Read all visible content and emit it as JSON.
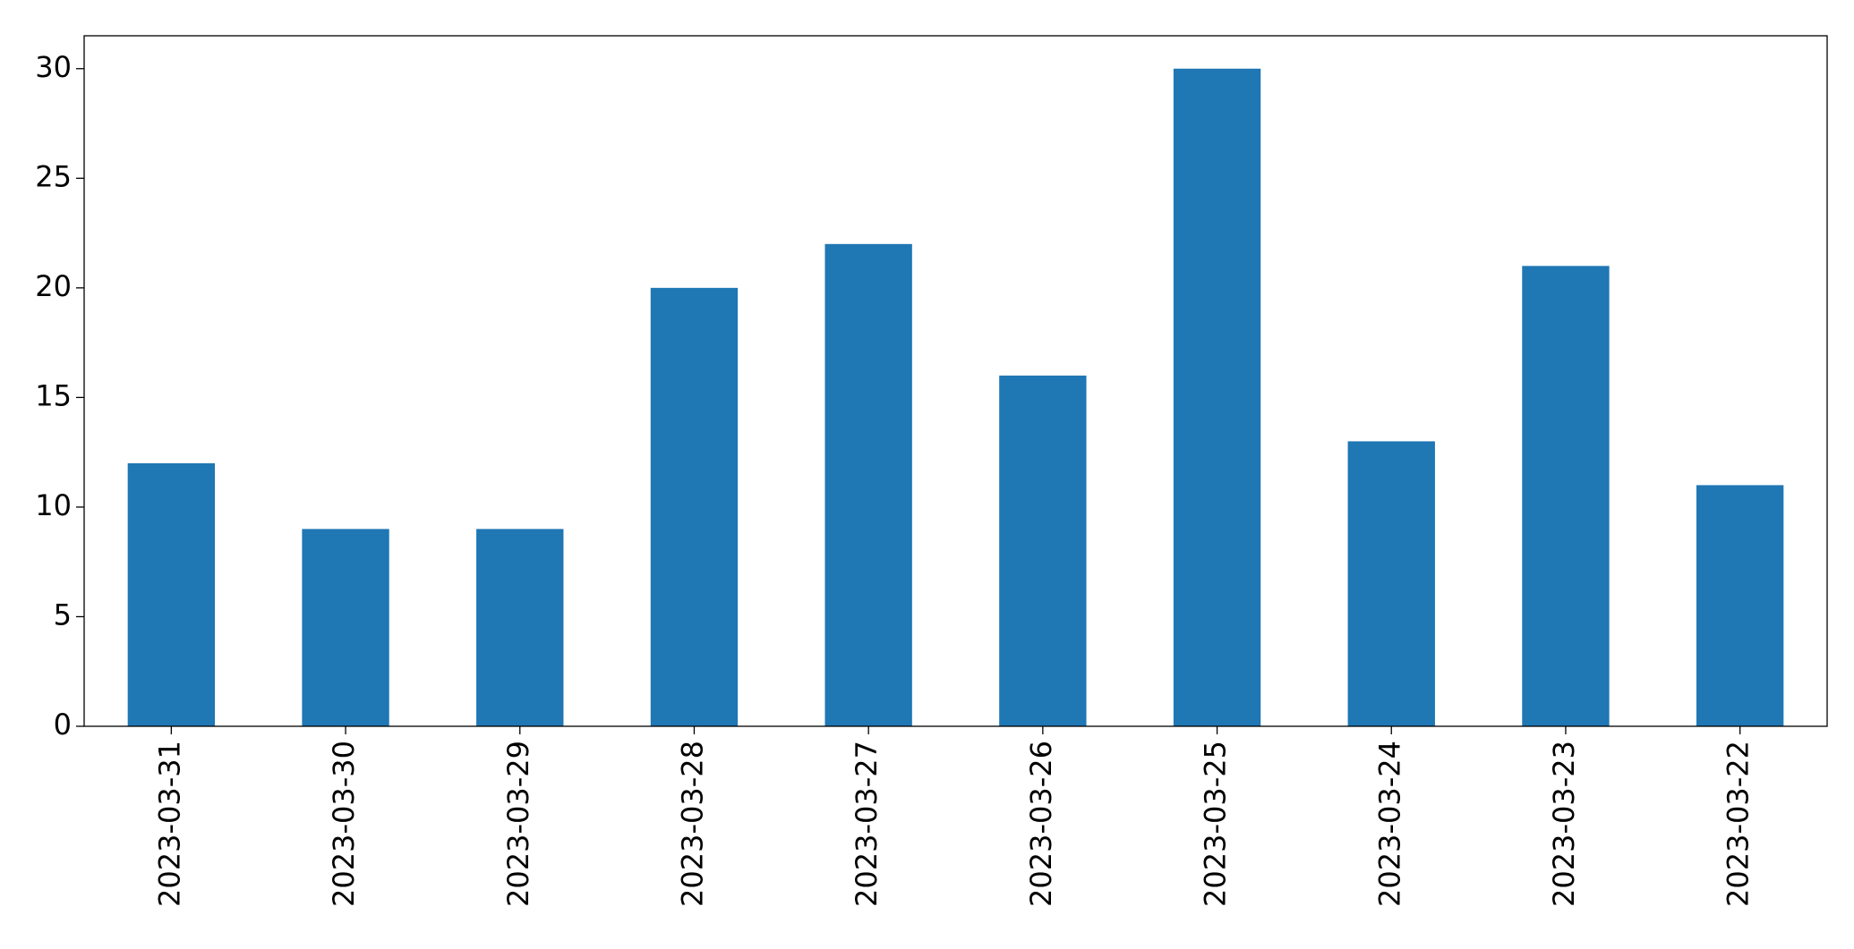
{
  "chart_data": {
    "type": "bar",
    "categories": [
      "2023-03-31",
      "2023-03-30",
      "2023-03-29",
      "2023-03-28",
      "2023-03-27",
      "2023-03-26",
      "2023-03-25",
      "2023-03-24",
      "2023-03-23",
      "2023-03-22"
    ],
    "values": [
      12,
      9,
      9,
      20,
      22,
      16,
      30,
      13,
      21,
      11
    ],
    "color": "#1f77b4",
    "ylim": [
      0,
      31.5
    ],
    "yticks": [
      0,
      5,
      10,
      15,
      20,
      25,
      30
    ],
    "grid": false
  }
}
